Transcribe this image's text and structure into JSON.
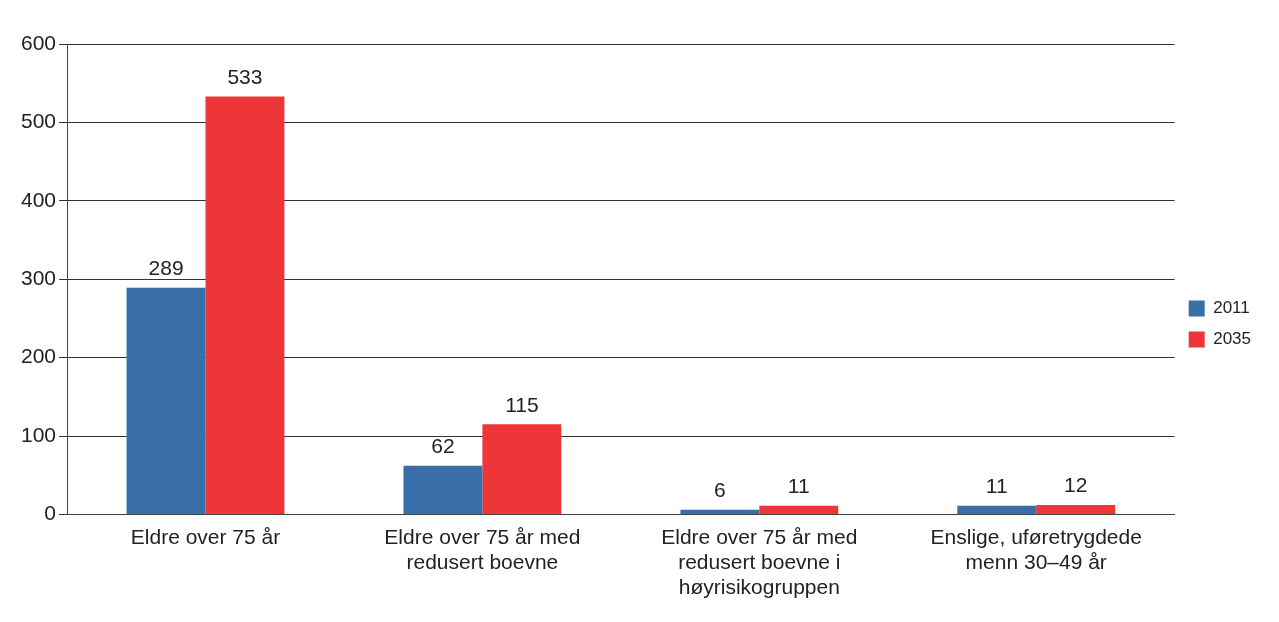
{
  "chart_data": {
    "type": "bar",
    "categories": [
      "Eldre over 75 år",
      "Eldre over 75 år med redusert boevne",
      "Eldre over 75 år med redusert boevne i høyrisikogruppen",
      "Enslige, uføretrygdede menn 30–49 år"
    ],
    "series": [
      {
        "name": "2011",
        "color": "#3a6ea8",
        "values": [
          289,
          62,
          6,
          11
        ]
      },
      {
        "name": "2035",
        "color": "#ee3538",
        "values": [
          533,
          115,
          11,
          12
        ]
      }
    ],
    "ylim": [
      0,
      600
    ],
    "yticks": [
      0,
      100,
      200,
      300,
      400,
      500,
      600
    ],
    "grid": "y",
    "legend": "right",
    "data_labels": true
  }
}
